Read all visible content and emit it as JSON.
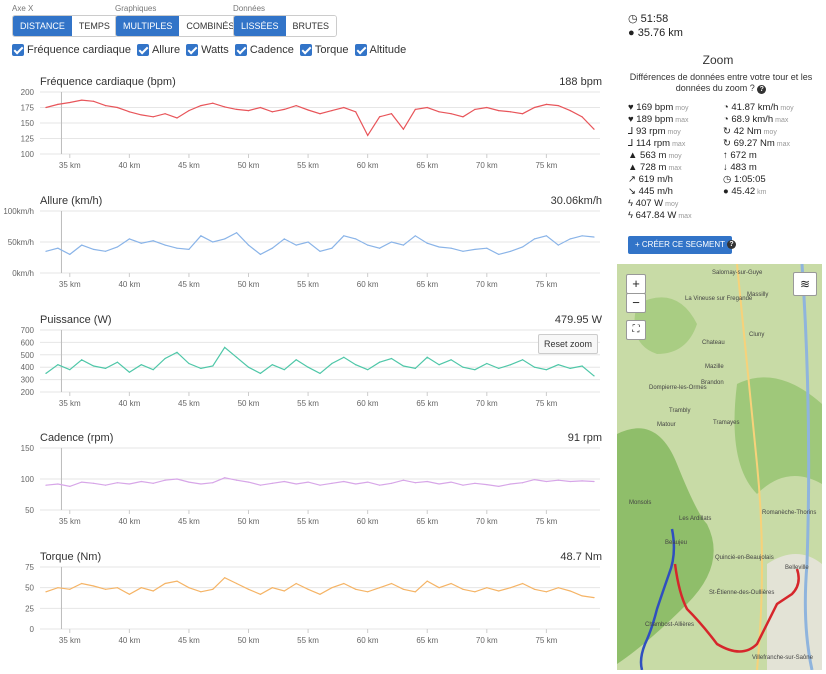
{
  "toolbar": {
    "axis": {
      "label": "Axe X",
      "options": [
        "DISTANCE",
        "TEMPS"
      ],
      "active": 0
    },
    "charts": {
      "label": "Graphiques",
      "options": [
        "MULTIPLES",
        "COMBINÉS"
      ],
      "active": 0
    },
    "data": {
      "label": "Données",
      "options": [
        "LISSÉES",
        "BRUTES"
      ],
      "active": 0
    }
  },
  "checkboxes": [
    "Fréquence cardiaque",
    "Allure",
    "Watts",
    "Cadence",
    "Torque",
    "Altitude"
  ],
  "reset_zoom": "Reset zoom",
  "summary": {
    "time": "51:58",
    "distance": "35.76 km"
  },
  "zoom": {
    "title": "Zoom",
    "question": "Différences de données entre votre tour et les données du zoom ?",
    "stats": [
      [
        {
          "v": "169 bpm",
          "s": "moy"
        },
        {
          "v": "41.87 km/h",
          "s": "moy"
        }
      ],
      [
        {
          "v": "189 bpm",
          "s": "max"
        },
        {
          "v": "68.9 km/h",
          "s": "max"
        }
      ],
      [
        {
          "v": "93 rpm",
          "s": "moy"
        },
        {
          "v": "42 Nm",
          "s": "moy"
        }
      ],
      [
        {
          "v": "114 rpm",
          "s": "max"
        },
        {
          "v": "69.27 Nm",
          "s": "max"
        }
      ],
      [
        {
          "v": "563 m",
          "s": "moy"
        },
        {
          "v": "672 m",
          "s": ""
        }
      ],
      [
        {
          "v": "728 m",
          "s": "max"
        },
        {
          "v": "483 m",
          "s": ""
        }
      ],
      [
        {
          "v": "619 m/h",
          "s": ""
        },
        {
          "v": "1:05:05",
          "s": ""
        }
      ],
      [
        {
          "v": "445 m/h",
          "s": ""
        },
        {
          "v": "45.42",
          "s": "km"
        }
      ],
      [
        {
          "v": "407 W",
          "s": "moy"
        },
        {
          "v": "",
          "s": ""
        }
      ],
      [
        {
          "v": "647.84 W",
          "s": "max"
        },
        {
          "v": "",
          "s": ""
        }
      ]
    ],
    "create_segment": "+ CRÉER CE SEGMENT"
  },
  "x_ticks": [
    "35 km",
    "40 km",
    "45 km",
    "50 km",
    "55 km",
    "60 km",
    "65 km",
    "70 km",
    "75 km"
  ],
  "chart_data": [
    {
      "type": "line",
      "title": "Fréquence cardiaque (bpm)",
      "value": "188 bpm",
      "color": "#e8555a",
      "ylim": [
        100,
        200
      ],
      "yticks": [
        "200",
        "175",
        "150",
        "125",
        "100"
      ],
      "x": [
        33,
        34,
        35,
        36,
        37,
        38,
        39,
        40,
        41,
        42,
        43,
        44,
        45,
        46,
        47,
        48,
        49,
        50,
        51,
        52,
        53,
        54,
        55,
        56,
        57,
        58,
        59,
        60,
        61,
        62,
        63,
        64,
        65,
        66,
        67,
        68,
        69,
        70,
        71,
        72,
        73,
        74,
        75,
        76,
        77,
        78,
        79
      ],
      "y": [
        175,
        180,
        183,
        187,
        185,
        178,
        175,
        168,
        163,
        160,
        165,
        158,
        170,
        178,
        182,
        176,
        172,
        170,
        175,
        168,
        172,
        178,
        171,
        165,
        170,
        175,
        168,
        130,
        160,
        165,
        140,
        172,
        175,
        168,
        165,
        160,
        172,
        175,
        170,
        168,
        165,
        175,
        180,
        178,
        170,
        160,
        140
      ]
    },
    {
      "type": "line",
      "title": "Allure (km/h)",
      "value": "30.06km/h",
      "color": "#8ab4e8",
      "ylim": [
        0,
        100
      ],
      "yticks": [
        "100km/h",
        "50km/h",
        "0km/h"
      ],
      "x": [
        33,
        34,
        35,
        36,
        37,
        38,
        39,
        40,
        41,
        42,
        43,
        44,
        45,
        46,
        47,
        48,
        49,
        50,
        51,
        52,
        53,
        54,
        55,
        56,
        57,
        58,
        59,
        60,
        61,
        62,
        63,
        64,
        65,
        66,
        67,
        68,
        69,
        70,
        71,
        72,
        73,
        74,
        75,
        76,
        77,
        78,
        79
      ],
      "y": [
        35,
        40,
        30,
        45,
        38,
        35,
        42,
        55,
        48,
        52,
        45,
        40,
        38,
        60,
        50,
        55,
        65,
        45,
        30,
        40,
        55,
        45,
        50,
        35,
        40,
        60,
        55,
        45,
        40,
        50,
        45,
        60,
        48,
        42,
        40,
        35,
        38,
        40,
        30,
        35,
        42,
        55,
        60,
        45,
        55,
        60,
        58
      ]
    },
    {
      "type": "line",
      "title": "Puissance (W)",
      "value": "479.95 W",
      "color": "#4fc7a8",
      "ylim": [
        200,
        700
      ],
      "yticks": [
        "700",
        "600",
        "500",
        "400",
        "300",
        "200"
      ],
      "x": [
        33,
        34,
        35,
        36,
        37,
        38,
        39,
        40,
        41,
        42,
        43,
        44,
        45,
        46,
        47,
        48,
        49,
        50,
        51,
        52,
        53,
        54,
        55,
        56,
        57,
        58,
        59,
        60,
        61,
        62,
        63,
        64,
        65,
        66,
        67,
        68,
        69,
        70,
        71,
        72,
        73,
        74,
        75,
        76,
        77,
        78,
        79
      ],
      "y": [
        350,
        420,
        380,
        460,
        410,
        390,
        440,
        360,
        420,
        380,
        470,
        520,
        430,
        390,
        410,
        560,
        480,
        400,
        350,
        420,
        380,
        460,
        400,
        350,
        430,
        480,
        420,
        380,
        440,
        470,
        410,
        390,
        480,
        420,
        460,
        400,
        380,
        430,
        390,
        420,
        460,
        400,
        380,
        420,
        390,
        410,
        330
      ]
    },
    {
      "type": "line",
      "title": "Cadence (rpm)",
      "value": "91 rpm",
      "color": "#d7a6e8",
      "ylim": [
        50,
        150
      ],
      "yticks": [
        "150",
        "100",
        "50"
      ],
      "x": [
        33,
        34,
        35,
        36,
        37,
        38,
        39,
        40,
        41,
        42,
        43,
        44,
        45,
        46,
        47,
        48,
        49,
        50,
        51,
        52,
        53,
        54,
        55,
        56,
        57,
        58,
        59,
        60,
        61,
        62,
        63,
        64,
        65,
        66,
        67,
        68,
        69,
        70,
        71,
        72,
        73,
        74,
        75,
        76,
        77,
        78,
        79
      ],
      "y": [
        90,
        92,
        88,
        95,
        93,
        90,
        94,
        92,
        96,
        93,
        98,
        100,
        95,
        92,
        94,
        102,
        98,
        95,
        90,
        93,
        96,
        92,
        95,
        90,
        93,
        96,
        92,
        95,
        90,
        93,
        98,
        94,
        96,
        92,
        95,
        90,
        93,
        91,
        88,
        92,
        94,
        99,
        96,
        98,
        96,
        97,
        96
      ]
    },
    {
      "type": "line",
      "title": "Torque (Nm)",
      "value": "48.7 Nm",
      "color": "#f5b466",
      "ylim": [
        0,
        75
      ],
      "yticks": [
        "75",
        "50",
        "25",
        "0"
      ],
      "x": [
        33,
        34,
        35,
        36,
        37,
        38,
        39,
        40,
        41,
        42,
        43,
        44,
        45,
        46,
        47,
        48,
        49,
        50,
        51,
        52,
        53,
        54,
        55,
        56,
        57,
        58,
        59,
        60,
        61,
        62,
        63,
        64,
        65,
        66,
        67,
        68,
        69,
        70,
        71,
        72,
        73,
        74,
        75,
        76,
        77,
        78,
        79
      ],
      "y": [
        45,
        50,
        48,
        55,
        52,
        48,
        50,
        42,
        50,
        46,
        55,
        58,
        50,
        45,
        48,
        62,
        55,
        48,
        42,
        50,
        46,
        55,
        48,
        42,
        50,
        55,
        48,
        45,
        50,
        55,
        48,
        45,
        58,
        50,
        55,
        48,
        45,
        50,
        46,
        50,
        55,
        48,
        45,
        50,
        46,
        40,
        38
      ]
    }
  ],
  "map_labels": [
    "Salornay-sur-Guye",
    "La Vineuse sur Fregande",
    "Massilly",
    "Cluny",
    "Chateau",
    "Mazille",
    "Tramayes",
    "Matour",
    "Brandon",
    "Dompierre-les-Ormes",
    "Trambly",
    "Les Ardillats",
    "Monsols",
    "Beaujeu",
    "Quincié-en-Beaujolais",
    "St-Étienne-des-Oullières",
    "Belleville",
    "Villefranche-sur-Saône",
    "Romanèche-Thorins",
    "Chambost-Allières"
  ],
  "map_zoom": {
    "in": "+",
    "out": "−"
  }
}
